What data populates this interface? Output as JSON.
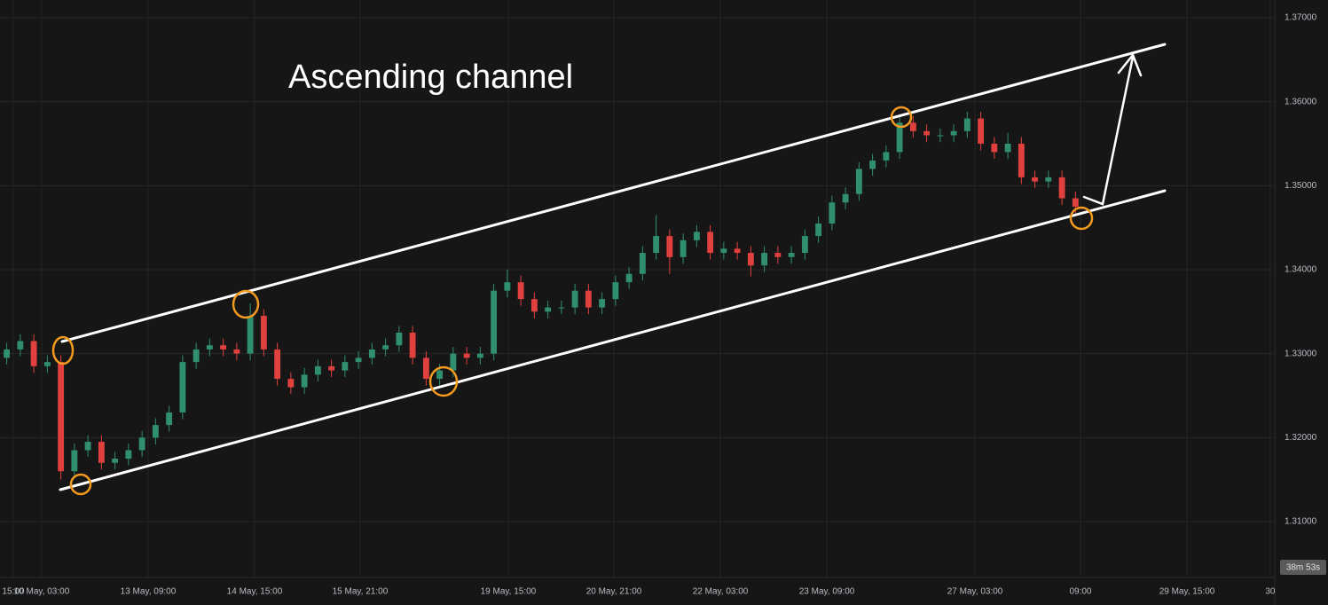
{
  "chart_data": {
    "type": "candlestick",
    "annotation": "Ascending channel",
    "countdown": "38m 53s",
    "up_color": "#2f8f6f",
    "down_color": "#e0413f",
    "grid": true,
    "xlim": [
      -0.5,
      93.6
    ],
    "xticks": [
      {
        "value": 0.48,
        "label": "15:00"
      },
      {
        "value": 2.58,
        "label": "10 May, 03:00"
      },
      {
        "value": 10.45,
        "label": "13 May, 09:00"
      },
      {
        "value": 18.32,
        "label": "14 May, 15:00"
      },
      {
        "value": 26.12,
        "label": "15 May, 21:00"
      },
      {
        "value": 37.07,
        "label": "19 May, 15:00"
      },
      {
        "value": 44.88,
        "label": "20 May, 21:00"
      },
      {
        "value": 52.75,
        "label": "22 May, 03:00"
      },
      {
        "value": 60.62,
        "label": "23 May, 09:00"
      },
      {
        "value": 71.57,
        "label": "27 May, 03:00"
      },
      {
        "value": 79.37,
        "label": "09:00"
      },
      {
        "value": 87.24,
        "label": "29 May, 15:00"
      },
      {
        "value": 93.4,
        "label": "30"
      }
    ],
    "ylim": [
      1.30345,
      1.37211
    ],
    "yticks": [
      {
        "value": 1.31,
        "label": "1.31000"
      },
      {
        "value": 1.32,
        "label": "1.32000"
      },
      {
        "value": 1.33,
        "label": "1.33000"
      },
      {
        "value": 1.34,
        "label": "1.34000"
      },
      {
        "value": 1.35,
        "label": "1.35000"
      },
      {
        "value": 1.36,
        "label": "1.36000"
      },
      {
        "value": 1.37,
        "label": "1.37000"
      }
    ],
    "open": [
      1.3295,
      1.3305,
      1.3315,
      1.3285,
      1.329,
      1.316,
      1.3185,
      1.3195,
      1.317,
      1.3175,
      1.3185,
      1.32,
      1.3215,
      1.323,
      1.329,
      1.3305,
      1.331,
      1.3305,
      1.33,
      1.3345,
      1.3305,
      1.327,
      1.326,
      1.3275,
      1.3285,
      1.328,
      1.329,
      1.3295,
      1.3305,
      1.331,
      1.3325,
      1.3295,
      1.327,
      1.328,
      1.33,
      1.3295,
      1.33,
      1.3375,
      1.3385,
      1.3365,
      1.335,
      1.3355,
      1.3355,
      1.3375,
      1.3355,
      1.3365,
      1.3385,
      1.3395,
      1.342,
      1.344,
      1.3415,
      1.3435,
      1.3445,
      1.342,
      1.3425,
      1.342,
      1.3405,
      1.342,
      1.3415,
      1.342,
      1.344,
      1.3455,
      1.348,
      1.349,
      1.352,
      1.353,
      1.354,
      1.3575,
      1.3565,
      1.356,
      1.356,
      1.3565,
      1.358,
      1.355,
      1.354,
      1.355,
      1.351,
      1.3505,
      1.351,
      1.3485
    ],
    "high": [
      1.3313,
      1.3323,
      1.3323,
      1.3298,
      1.3298,
      1.3193,
      1.3203,
      1.3203,
      1.3183,
      1.3193,
      1.3208,
      1.3223,
      1.3238,
      1.3298,
      1.3313,
      1.3318,
      1.3318,
      1.3313,
      1.336,
      1.3353,
      1.3313,
      1.3278,
      1.3283,
      1.3293,
      1.3293,
      1.3298,
      1.3303,
      1.3313,
      1.3318,
      1.3333,
      1.3333,
      1.3303,
      1.3288,
      1.3308,
      1.3308,
      1.3308,
      1.3383,
      1.34,
      1.3393,
      1.3373,
      1.3363,
      1.3363,
      1.3383,
      1.3383,
      1.3373,
      1.3393,
      1.3403,
      1.3428,
      1.3465,
      1.3448,
      1.3443,
      1.3453,
      1.3453,
      1.3433,
      1.3433,
      1.3428,
      1.3428,
      1.3428,
      1.3428,
      1.3448,
      1.3463,
      1.3488,
      1.3498,
      1.3528,
      1.3538,
      1.3548,
      1.3585,
      1.3583,
      1.3573,
      1.3568,
      1.3573,
      1.3588,
      1.3588,
      1.3558,
      1.3563,
      1.3558,
      1.3518,
      1.3518,
      1.3518,
      1.3493
    ],
    "low": [
      1.3287,
      1.3297,
      1.3277,
      1.3277,
      1.315,
      1.3152,
      1.3177,
      1.3162,
      1.3162,
      1.3167,
      1.3177,
      1.3192,
      1.3207,
      1.3222,
      1.3282,
      1.3297,
      1.3297,
      1.3292,
      1.3292,
      1.3297,
      1.3262,
      1.3252,
      1.3252,
      1.3267,
      1.3272,
      1.3272,
      1.3282,
      1.3287,
      1.3297,
      1.3302,
      1.3287,
      1.3262,
      1.3262,
      1.3272,
      1.3287,
      1.3287,
      1.3292,
      1.3367,
      1.3357,
      1.3342,
      1.3342,
      1.3347,
      1.3347,
      1.3347,
      1.3347,
      1.3357,
      1.3377,
      1.3387,
      1.3412,
      1.3395,
      1.3407,
      1.3427,
      1.3412,
      1.3412,
      1.3412,
      1.3392,
      1.3397,
      1.3407,
      1.3407,
      1.3412,
      1.3432,
      1.3447,
      1.3472,
      1.3482,
      1.3512,
      1.3522,
      1.3532,
      1.3557,
      1.3552,
      1.3552,
      1.3552,
      1.3557,
      1.3542,
      1.3532,
      1.3532,
      1.3502,
      1.3497,
      1.3497,
      1.3477,
      1.3467
    ],
    "close": [
      1.3305,
      1.3315,
      1.3285,
      1.329,
      1.316,
      1.3185,
      1.3195,
      1.317,
      1.3175,
      1.3185,
      1.32,
      1.3215,
      1.323,
      1.329,
      1.3305,
      1.331,
      1.3305,
      1.33,
      1.3345,
      1.3305,
      1.327,
      1.326,
      1.3275,
      1.3285,
      1.328,
      1.329,
      1.3295,
      1.3305,
      1.331,
      1.3325,
      1.3295,
      1.327,
      1.328,
      1.33,
      1.3295,
      1.33,
      1.3375,
      1.3385,
      1.3365,
      1.335,
      1.3355,
      1.3355,
      1.3375,
      1.3355,
      1.3365,
      1.3385,
      1.3395,
      1.342,
      1.344,
      1.3415,
      1.3435,
      1.3445,
      1.342,
      1.3425,
      1.342,
      1.3405,
      1.342,
      1.3415,
      1.342,
      1.344,
      1.3455,
      1.348,
      1.349,
      1.352,
      1.353,
      1.354,
      1.3575,
      1.3565,
      1.356,
      1.356,
      1.3565,
      1.358,
      1.355,
      1.354,
      1.355,
      1.351,
      1.3505,
      1.351,
      1.3485,
      1.3475
    ]
  }
}
